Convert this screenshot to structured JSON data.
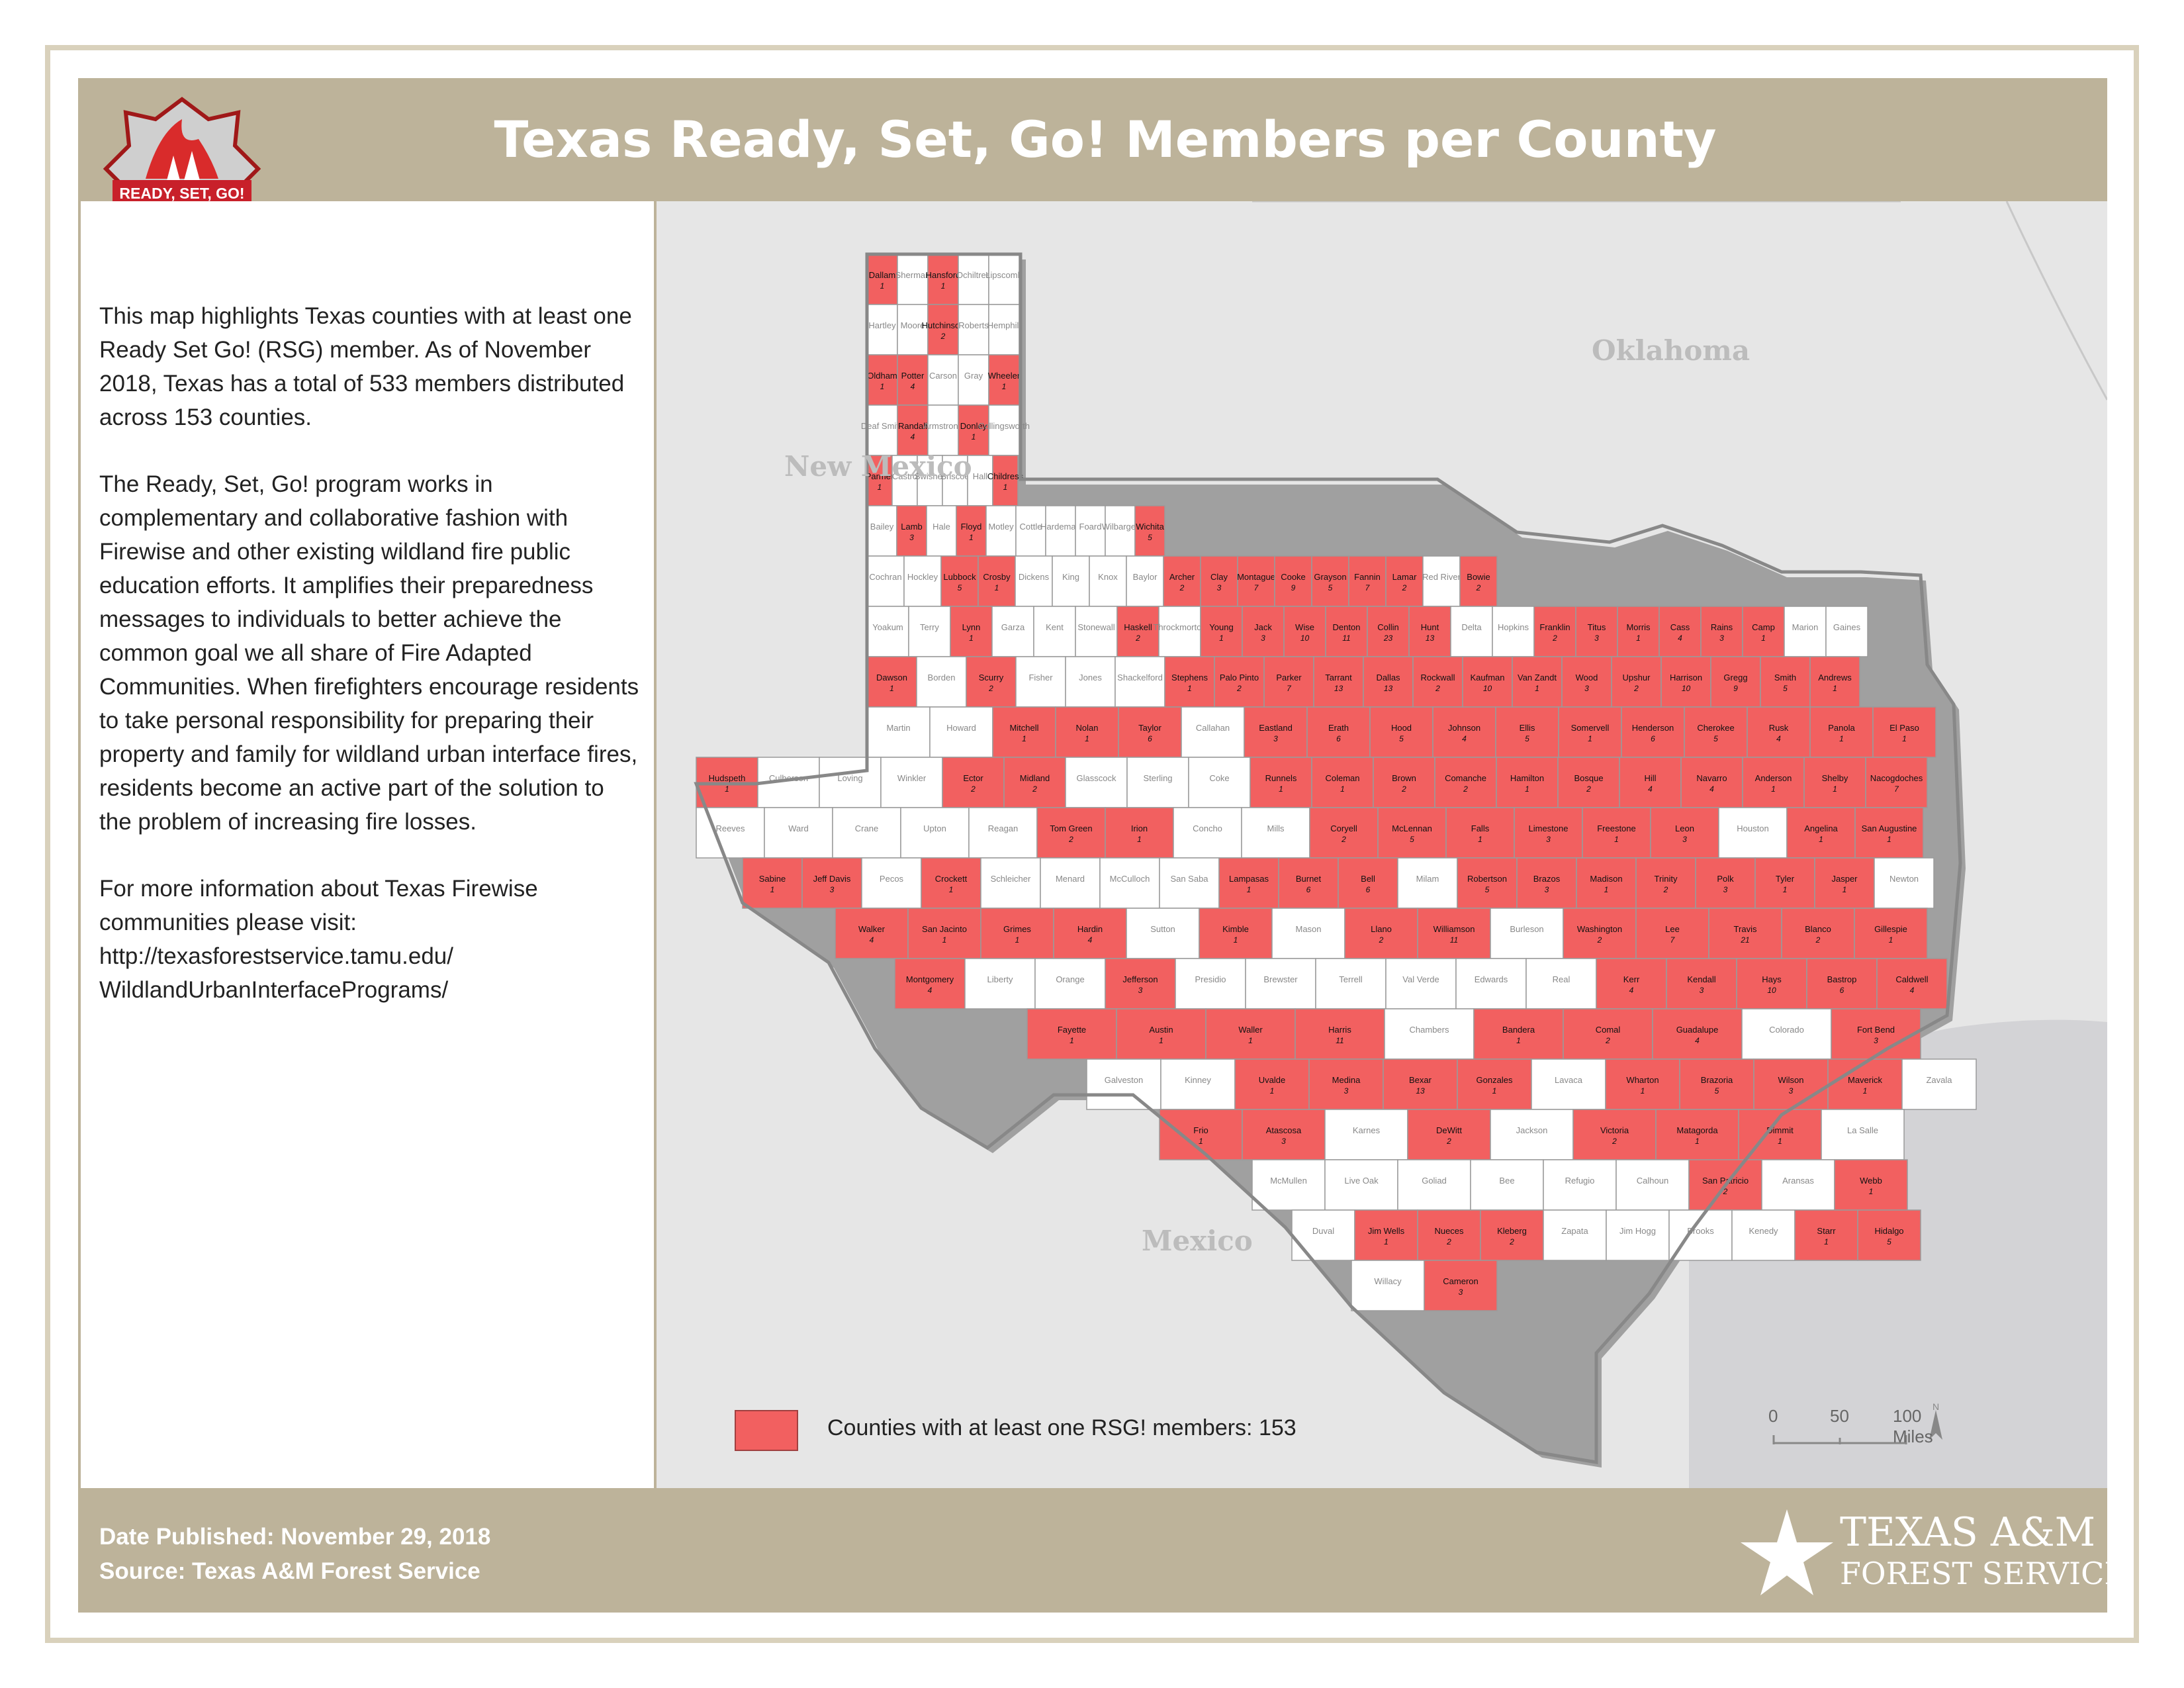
{
  "header": {
    "title": "Texas Ready, Set, Go! Members per County",
    "logo_text": "READY, SET, GO!"
  },
  "description": {
    "p1": "This map highlights Texas counties with at least one Ready Set Go! (RSG) member.  As of November 2018, Texas has a total of 533 members distributed across 153 counties.",
    "p2": "The Ready, Set, Go! program works in complementary and collaborative fashion with Firewise and other existing wildland fire public education efforts. It amplifies their preparedness messages to individuals to better achieve the common goal we all share of Fire Adapted Communities.  When firefighters encourage residents to take personal responsibility for preparing their property and family for wildland urban interface fires, residents become an active part of the solution to the problem of increasing fire losses.",
    "p3": "For more information about Texas Firewise communities please visit: http://texasforestservice.tamu.edu/ WildlandUrbanInterfacePrograms/"
  },
  "neighbors": {
    "new_mexico": "New Mexico",
    "oklahoma": "Oklahoma",
    "mexico": "Mexico"
  },
  "legend": {
    "label": "Counties with at least one RSG! members: 153",
    "color": "#f26060"
  },
  "scale": {
    "t0": "0",
    "t1": "50",
    "t2": "100 Miles",
    "north": "N"
  },
  "footer": {
    "date": "Date Published: November 29, 2018",
    "source": "Source: Texas A&M Forest Service",
    "org1": "TEXAS A&M",
    "org2": "FOREST SERVICE"
  },
  "colors": {
    "member": "#f26060",
    "nonmember": "#ffffff",
    "water": "#d3d3d6",
    "land": "#e6e6e6"
  },
  "counties": [
    {
      "n": "Dallam",
      "c": "1",
      "m": true
    },
    {
      "n": "Sherman",
      "m": false
    },
    {
      "n": "Hansford",
      "c": "1",
      "m": true
    },
    {
      "n": "Ochiltree",
      "m": false
    },
    {
      "n": "Lipscomb",
      "m": false
    },
    {
      "n": "Hartley",
      "m": false
    },
    {
      "n": "Moore",
      "m": false
    },
    {
      "n": "Hutchinson",
      "c": "2",
      "m": true
    },
    {
      "n": "Roberts",
      "m": false
    },
    {
      "n": "Hemphill",
      "m": false
    },
    {
      "n": "Oldham",
      "c": "1",
      "m": true
    },
    {
      "n": "Potter",
      "c": "4",
      "m": true
    },
    {
      "n": "Carson",
      "m": false
    },
    {
      "n": "Gray",
      "m": false
    },
    {
      "n": "Wheeler",
      "c": "1",
      "m": true
    },
    {
      "n": "Deaf Smith",
      "m": false
    },
    {
      "n": "Randall",
      "c": "4",
      "m": true
    },
    {
      "n": "Armstrong",
      "m": false
    },
    {
      "n": "Donley",
      "c": "1",
      "m": true
    },
    {
      "n": "Collingsworth",
      "m": false
    },
    {
      "n": "Parmer",
      "c": "1",
      "m": true
    },
    {
      "n": "Castro",
      "m": false
    },
    {
      "n": "Swisher",
      "m": false
    },
    {
      "n": "Briscoe",
      "m": false
    },
    {
      "n": "Hall",
      "m": false
    },
    {
      "n": "Childress",
      "c": "1",
      "m": true
    },
    {
      "n": "Bailey",
      "m": false
    },
    {
      "n": "Lamb",
      "c": "3",
      "m": true
    },
    {
      "n": "Hale",
      "m": false
    },
    {
      "n": "Floyd",
      "c": "1",
      "m": true
    },
    {
      "n": "Motley",
      "m": false
    },
    {
      "n": "Cottle",
      "m": false
    },
    {
      "n": "Hardeman",
      "m": false
    },
    {
      "n": "Foard",
      "m": false
    },
    {
      "n": "Wilbarger",
      "m": false
    },
    {
      "n": "Wichita",
      "c": "5",
      "m": true
    },
    {
      "n": "Cochran",
      "m": false
    },
    {
      "n": "Hockley",
      "m": false
    },
    {
      "n": "Lubbock",
      "c": "5",
      "m": true
    },
    {
      "n": "Crosby",
      "c": "1",
      "m": true
    },
    {
      "n": "Dickens",
      "m": false
    },
    {
      "n": "King",
      "m": false
    },
    {
      "n": "Knox",
      "m": false
    },
    {
      "n": "Baylor",
      "m": false
    },
    {
      "n": "Archer",
      "c": "2",
      "m": true
    },
    {
      "n": "Clay",
      "c": "3",
      "m": true
    },
    {
      "n": "Montague",
      "c": "7",
      "m": true
    },
    {
      "n": "Cooke",
      "c": "9",
      "m": true
    },
    {
      "n": "Grayson",
      "c": "5",
      "m": true
    },
    {
      "n": "Fannin",
      "c": "7",
      "m": true
    },
    {
      "n": "Lamar",
      "c": "2",
      "m": true
    },
    {
      "n": "Red River",
      "m": false
    },
    {
      "n": "Bowie",
      "c": "2",
      "m": true
    },
    {
      "n": "Yoakum",
      "m": false
    },
    {
      "n": "Terry",
      "m": false
    },
    {
      "n": "Lynn",
      "c": "1",
      "m": true
    },
    {
      "n": "Garza",
      "m": false
    },
    {
      "n": "Kent",
      "m": false
    },
    {
      "n": "Stonewall",
      "m": false
    },
    {
      "n": "Haskell",
      "c": "2",
      "m": true
    },
    {
      "n": "Throckmorton",
      "m": false
    },
    {
      "n": "Young",
      "c": "1",
      "m": true
    },
    {
      "n": "Jack",
      "c": "3",
      "m": true
    },
    {
      "n": "Wise",
      "c": "10",
      "m": true
    },
    {
      "n": "Denton",
      "c": "11",
      "m": true
    },
    {
      "n": "Collin",
      "c": "23",
      "m": true
    },
    {
      "n": "Hunt",
      "c": "13",
      "m": true
    },
    {
      "n": "Delta",
      "m": false
    },
    {
      "n": "Hopkins",
      "m": false
    },
    {
      "n": "Franklin",
      "c": "2",
      "m": true
    },
    {
      "n": "Titus",
      "c": "3",
      "m": true
    },
    {
      "n": "Morris",
      "c": "1",
      "m": true
    },
    {
      "n": "Cass",
      "c": "4",
      "m": true
    },
    {
      "n": "Rains",
      "c": "3",
      "m": true
    },
    {
      "n": "Camp",
      "c": "1",
      "m": true
    },
    {
      "n": "Marion",
      "m": false
    },
    {
      "n": "Gaines",
      "m": false
    },
    {
      "n": "Dawson",
      "c": "1",
      "m": true
    },
    {
      "n": "Borden",
      "m": false
    },
    {
      "n": "Scurry",
      "c": "2",
      "m": true
    },
    {
      "n": "Fisher",
      "m": false
    },
    {
      "n": "Jones",
      "m": false
    },
    {
      "n": "Shackelford",
      "m": false
    },
    {
      "n": "Stephens",
      "c": "1",
      "m": true
    },
    {
      "n": "Palo Pinto",
      "c": "2",
      "m": true
    },
    {
      "n": "Parker",
      "c": "7",
      "m": true
    },
    {
      "n": "Tarrant",
      "c": "13",
      "m": true
    },
    {
      "n": "Dallas",
      "c": "13",
      "m": true
    },
    {
      "n": "Rockwall",
      "c": "2",
      "m": true
    },
    {
      "n": "Kaufman",
      "c": "10",
      "m": true
    },
    {
      "n": "Van Zandt",
      "c": "1",
      "m": true
    },
    {
      "n": "Wood",
      "c": "3",
      "m": true
    },
    {
      "n": "Upshur",
      "c": "2",
      "m": true
    },
    {
      "n": "Harrison",
      "c": "10",
      "m": true
    },
    {
      "n": "Gregg",
      "c": "9",
      "m": true
    },
    {
      "n": "Smith",
      "c": "5",
      "m": true
    },
    {
      "n": "Andrews",
      "c": "1",
      "m": true
    },
    {
      "n": "Martin",
      "m": false
    },
    {
      "n": "Howard",
      "m": false
    },
    {
      "n": "Mitchell",
      "c": "1",
      "m": true
    },
    {
      "n": "Nolan",
      "c": "1",
      "m": true
    },
    {
      "n": "Taylor",
      "c": "6",
      "m": true
    },
    {
      "n": "Callahan",
      "m": false
    },
    {
      "n": "Eastland",
      "c": "3",
      "m": true
    },
    {
      "n": "Erath",
      "c": "6",
      "m": true
    },
    {
      "n": "Hood",
      "c": "5",
      "m": true
    },
    {
      "n": "Johnson",
      "c": "4",
      "m": true
    },
    {
      "n": "Ellis",
      "c": "5",
      "m": true
    },
    {
      "n": "Somervell",
      "c": "1",
      "m": true
    },
    {
      "n": "Henderson",
      "c": "6",
      "m": true
    },
    {
      "n": "Cherokee",
      "c": "5",
      "m": true
    },
    {
      "n": "Rusk",
      "c": "4",
      "m": true
    },
    {
      "n": "Panola",
      "c": "1",
      "m": true
    },
    {
      "n": "El Paso",
      "c": "1",
      "m": true
    },
    {
      "n": "Hudspeth",
      "c": "1",
      "m": true
    },
    {
      "n": "Culberson",
      "m": false
    },
    {
      "n": "Loving",
      "m": false
    },
    {
      "n": "Winkler",
      "m": false
    },
    {
      "n": "Ector",
      "c": "2",
      "m": true
    },
    {
      "n": "Midland",
      "c": "2",
      "m": true
    },
    {
      "n": "Glasscock",
      "m": false
    },
    {
      "n": "Sterling",
      "m": false
    },
    {
      "n": "Coke",
      "m": false
    },
    {
      "n": "Runnels",
      "c": "1",
      "m": true
    },
    {
      "n": "Coleman",
      "c": "1",
      "m": true
    },
    {
      "n": "Brown",
      "c": "2",
      "m": true
    },
    {
      "n": "Comanche",
      "c": "2",
      "m": true
    },
    {
      "n": "Hamilton",
      "c": "1",
      "m": true
    },
    {
      "n": "Bosque",
      "c": "2",
      "m": true
    },
    {
      "n": "Hill",
      "c": "4",
      "m": true
    },
    {
      "n": "Navarro",
      "c": "4",
      "m": true
    },
    {
      "n": "Anderson",
      "c": "1",
      "m": true
    },
    {
      "n": "Shelby",
      "c": "1",
      "m": true
    },
    {
      "n": "Nacogdoches",
      "c": "7",
      "m": true
    },
    {
      "n": "Reeves",
      "m": false
    },
    {
      "n": "Ward",
      "m": false
    },
    {
      "n": "Crane",
      "m": false
    },
    {
      "n": "Upton",
      "m": false
    },
    {
      "n": "Reagan",
      "m": false
    },
    {
      "n": "Tom Green",
      "c": "2",
      "m": true
    },
    {
      "n": "Irion",
      "c": "1",
      "m": true
    },
    {
      "n": "Concho",
      "m": false
    },
    {
      "n": "Mills",
      "m": false
    },
    {
      "n": "Coryell",
      "c": "2",
      "m": true
    },
    {
      "n": "McLennan",
      "c": "5",
      "m": true
    },
    {
      "n": "Falls",
      "c": "1",
      "m": true
    },
    {
      "n": "Limestone",
      "c": "3",
      "m": true
    },
    {
      "n": "Freestone",
      "c": "1",
      "m": true
    },
    {
      "n": "Leon",
      "c": "3",
      "m": true
    },
    {
      "n": "Houston",
      "m": false
    },
    {
      "n": "Angelina",
      "c": "1",
      "m": true
    },
    {
      "n": "San Augustine",
      "c": "1",
      "m": true
    },
    {
      "n": "Sabine",
      "c": "1",
      "m": true
    },
    {
      "n": "Jeff Davis",
      "c": "3",
      "m": true
    },
    {
      "n": "Pecos",
      "m": false
    },
    {
      "n": "Crockett",
      "c": "1",
      "m": true
    },
    {
      "n": "Schleicher",
      "m": false
    },
    {
      "n": "Menard",
      "m": false
    },
    {
      "n": "McCulloch",
      "m": false
    },
    {
      "n": "San Saba",
      "m": false
    },
    {
      "n": "Lampasas",
      "c": "1",
      "m": true
    },
    {
      "n": "Burnet",
      "c": "6",
      "m": true
    },
    {
      "n": "Bell",
      "c": "6",
      "m": true
    },
    {
      "n": "Milam",
      "m": false
    },
    {
      "n": "Robertson",
      "c": "5",
      "m": true
    },
    {
      "n": "Brazos",
      "c": "3",
      "m": true
    },
    {
      "n": "Madison",
      "c": "1",
      "m": true
    },
    {
      "n": "Trinity",
      "c": "2",
      "m": true
    },
    {
      "n": "Polk",
      "c": "3",
      "m": true
    },
    {
      "n": "Tyler",
      "c": "1",
      "m": true
    },
    {
      "n": "Jasper",
      "c": "1",
      "m": true
    },
    {
      "n": "Newton",
      "m": false
    },
    {
      "n": "Walker",
      "c": "4",
      "m": true
    },
    {
      "n": "San Jacinto",
      "c": "1",
      "m": true
    },
    {
      "n": "Grimes",
      "c": "1",
      "m": true
    },
    {
      "n": "Hardin",
      "c": "4",
      "m": true
    },
    {
      "n": "Sutton",
      "m": false
    },
    {
      "n": "Kimble",
      "c": "1",
      "m": true
    },
    {
      "n": "Mason",
      "m": false
    },
    {
      "n": "Llano",
      "c": "2",
      "m": true
    },
    {
      "n": "Williamson",
      "c": "11",
      "m": true
    },
    {
      "n": "Burleson",
      "m": false
    },
    {
      "n": "Washington",
      "c": "2",
      "m": true
    },
    {
      "n": "Lee",
      "c": "7",
      "m": true
    },
    {
      "n": "Travis",
      "c": "21",
      "m": true
    },
    {
      "n": "Blanco",
      "c": "2",
      "m": true
    },
    {
      "n": "Gillespie",
      "c": "1",
      "m": true
    },
    {
      "n": "Montgomery",
      "c": "4",
      "m": true
    },
    {
      "n": "Liberty",
      "m": false
    },
    {
      "n": "Orange",
      "m": false
    },
    {
      "n": "Jefferson",
      "c": "3",
      "m": true
    },
    {
      "n": "Presidio",
      "m": false
    },
    {
      "n": "Brewster",
      "m": false
    },
    {
      "n": "Terrell",
      "m": false
    },
    {
      "n": "Val Verde",
      "m": false
    },
    {
      "n": "Edwards",
      "m": false
    },
    {
      "n": "Real",
      "m": false
    },
    {
      "n": "Kerr",
      "c": "4",
      "m": true
    },
    {
      "n": "Kendall",
      "c": "3",
      "m": true
    },
    {
      "n": "Hays",
      "c": "10",
      "m": true
    },
    {
      "n": "Bastrop",
      "c": "6",
      "m": true
    },
    {
      "n": "Caldwell",
      "c": "4",
      "m": true
    },
    {
      "n": "Fayette",
      "c": "1",
      "m": true
    },
    {
      "n": "Austin",
      "c": "1",
      "m": true
    },
    {
      "n": "Waller",
      "c": "1",
      "m": true
    },
    {
      "n": "Harris",
      "c": "11",
      "m": true
    },
    {
      "n": "Chambers",
      "m": false
    },
    {
      "n": "Bandera",
      "c": "1",
      "m": true
    },
    {
      "n": "Comal",
      "c": "2",
      "m": true
    },
    {
      "n": "Guadalupe",
      "c": "4",
      "m": true
    },
    {
      "n": "Colorado",
      "m": false
    },
    {
      "n": "Fort Bend",
      "c": "3",
      "m": true
    },
    {
      "n": "Galveston",
      "m": false
    },
    {
      "n": "Kinney",
      "m": false
    },
    {
      "n": "Uvalde",
      "c": "1",
      "m": true
    },
    {
      "n": "Medina",
      "c": "3",
      "m": true
    },
    {
      "n": "Bexar",
      "c": "13",
      "m": true
    },
    {
      "n": "Gonzales",
      "c": "1",
      "m": true
    },
    {
      "n": "Lavaca",
      "m": false
    },
    {
      "n": "Wharton",
      "c": "1",
      "m": true
    },
    {
      "n": "Brazoria",
      "c": "5",
      "m": true
    },
    {
      "n": "Wilson",
      "c": "3",
      "m": true
    },
    {
      "n": "Maverick",
      "c": "1",
      "m": true
    },
    {
      "n": "Zavala",
      "m": false
    },
    {
      "n": "Frio",
      "c": "1",
      "m": true
    },
    {
      "n": "Atascosa",
      "c": "3",
      "m": true
    },
    {
      "n": "Karnes",
      "m": false
    },
    {
      "n": "DeWitt",
      "c": "2",
      "m": true
    },
    {
      "n": "Jackson",
      "m": false
    },
    {
      "n": "Victoria",
      "c": "2",
      "m": true
    },
    {
      "n": "Matagorda",
      "c": "1",
      "m": true
    },
    {
      "n": "Dimmit",
      "c": "1",
      "m": true
    },
    {
      "n": "La Salle",
      "m": false
    },
    {
      "n": "McMullen",
      "m": false
    },
    {
      "n": "Live Oak",
      "m": false
    },
    {
      "n": "Goliad",
      "m": false
    },
    {
      "n": "Bee",
      "m": false
    },
    {
      "n": "Refugio",
      "m": false
    },
    {
      "n": "Calhoun",
      "m": false
    },
    {
      "n": "San Patricio",
      "c": "2",
      "m": true
    },
    {
      "n": "Aransas",
      "m": false
    },
    {
      "n": "Webb",
      "c": "1",
      "m": true
    },
    {
      "n": "Duval",
      "m": false
    },
    {
      "n": "Jim Wells",
      "c": "1",
      "m": true
    },
    {
      "n": "Nueces",
      "c": "2",
      "m": true
    },
    {
      "n": "Kleberg",
      "c": "2",
      "m": true
    },
    {
      "n": "Zapata",
      "m": false
    },
    {
      "n": "Jim Hogg",
      "m": false
    },
    {
      "n": "Brooks",
      "m": false
    },
    {
      "n": "Kenedy",
      "m": false
    },
    {
      "n": "Starr",
      "c": "1",
      "m": true
    },
    {
      "n": "Hidalgo",
      "c": "5",
      "m": true
    },
    {
      "n": "Willacy",
      "m": false
    },
    {
      "n": "Cameron",
      "c": "3",
      "m": true
    }
  ]
}
